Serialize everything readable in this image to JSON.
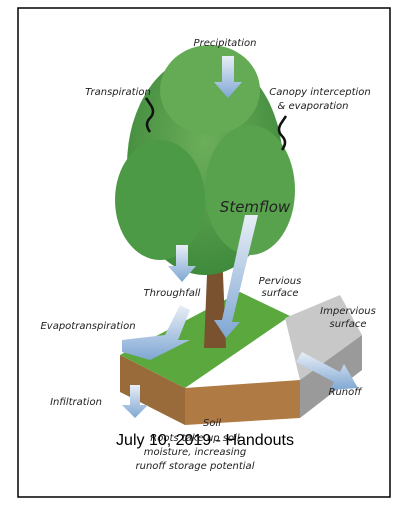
{
  "diagram": {
    "labels": {
      "precipitation": "Precipitation",
      "transpiration": "Transpiration",
      "canopy": [
        "Canopy interception",
        "& evaporation"
      ],
      "stemflow": "Stemflow",
      "pervious": [
        "Pervious",
        "surface"
      ],
      "impervious": [
        "Impervious",
        "surface"
      ],
      "throughfall": "Throughfall",
      "evapotranspiration": "Evapotranspiration",
      "runoff": "Runoff",
      "infiltration": "Infiltration",
      "soil": "Soil",
      "roots": [
        "Roots take up soil",
        "moisture, increasing",
        "runoff storage potential"
      ]
    },
    "caption": "July 10, 2019 - Handouts"
  }
}
